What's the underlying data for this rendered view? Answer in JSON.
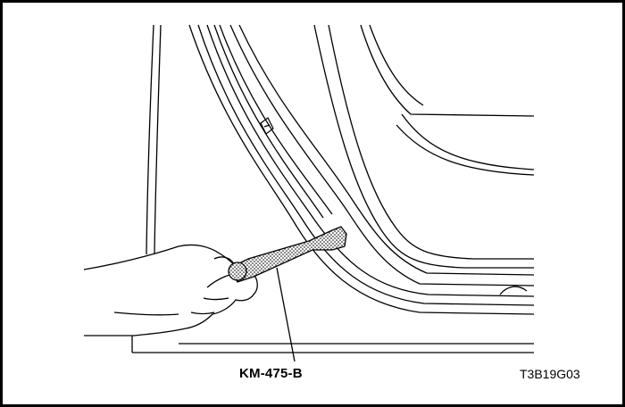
{
  "labels": {
    "tool": "KM-475-B",
    "figure_code": "T3B19G03"
  },
  "colors": {
    "line": "#000000",
    "background": "#ffffff"
  }
}
